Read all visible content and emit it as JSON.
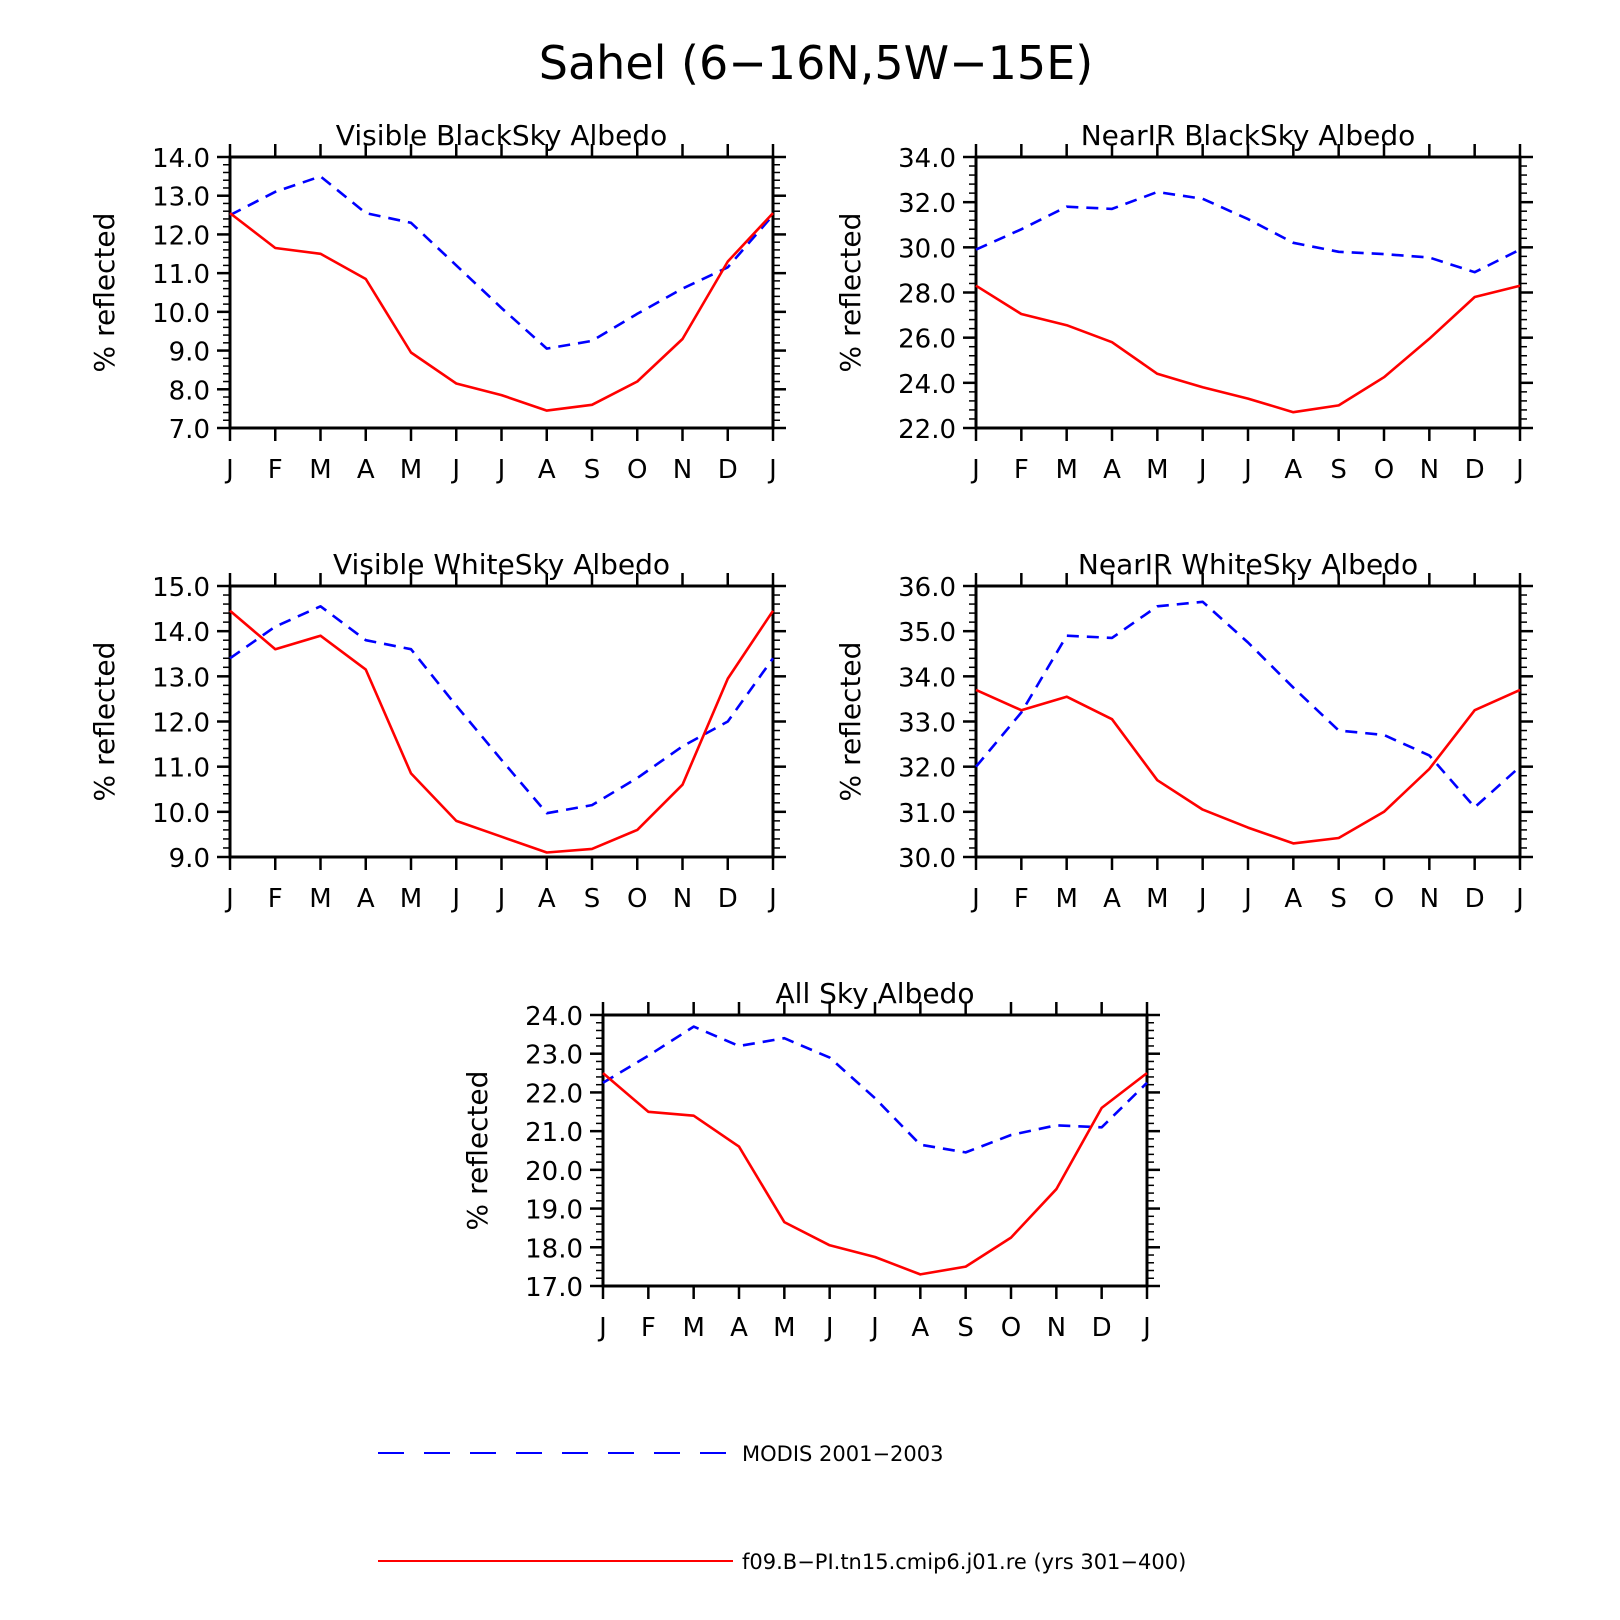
{
  "figure_title": "Sahel (6−16N,5W−15E)",
  "colors": {
    "modis": "#0000ff",
    "model": "#ff0000",
    "axes": "#000000"
  },
  "legend": [
    {
      "label": "MODIS 2001−2003",
      "style": "dashed",
      "color": "#0000ff"
    },
    {
      "label": "f09.B−PI.tn15.cmip6.j01.re (yrs 301−400)",
      "style": "solid",
      "color": "#ff0000"
    }
  ],
  "chart_data": [
    {
      "type": "line",
      "title": "Visible BlackSky Albedo",
      "ylabel": "% reflected",
      "categories": [
        "J",
        "F",
        "M",
        "A",
        "M",
        "J",
        "J",
        "A",
        "S",
        "O",
        "N",
        "D",
        "J"
      ],
      "ylim": [
        7.0,
        14.0
      ],
      "yticks": [
        "7.0",
        "8.0",
        "9.0",
        "10.0",
        "11.0",
        "12.0",
        "13.0",
        "14.0"
      ],
      "series": [
        {
          "name": "MODIS 2001−2003",
          "style": "dashed",
          "values": [
            12.5,
            13.1,
            13.5,
            12.55,
            12.3,
            11.2,
            10.1,
            9.05,
            9.25,
            9.95,
            10.6,
            11.15,
            12.5
          ]
        },
        {
          "name": "f09.B−PI.tn15.cmip6.j01.re (yrs 301−400)",
          "style": "solid",
          "values": [
            12.55,
            11.65,
            11.5,
            10.85,
            8.95,
            8.15,
            7.85,
            7.45,
            7.6,
            8.2,
            9.3,
            11.3,
            12.55
          ]
        }
      ]
    },
    {
      "type": "line",
      "title": "NearIR BlackSky Albedo",
      "ylabel": "% reflected",
      "categories": [
        "J",
        "F",
        "M",
        "A",
        "M",
        "J",
        "J",
        "A",
        "S",
        "O",
        "N",
        "D",
        "J"
      ],
      "ylim": [
        22.0,
        34.0
      ],
      "yticks": [
        "22.0",
        "24.0",
        "26.0",
        "28.0",
        "30.0",
        "32.0",
        "34.0"
      ],
      "series": [
        {
          "name": "MODIS 2001−2003",
          "style": "dashed",
          "values": [
            29.9,
            30.8,
            31.8,
            31.7,
            32.45,
            32.15,
            31.25,
            30.2,
            29.8,
            29.7,
            29.55,
            28.9,
            29.9
          ]
        },
        {
          "name": "f09.B−PI.tn15.cmip6.j01.re (yrs 301−400)",
          "style": "solid",
          "values": [
            28.3,
            27.05,
            26.55,
            25.8,
            24.4,
            23.8,
            23.3,
            22.7,
            23.0,
            24.25,
            25.95,
            27.8,
            28.3
          ]
        }
      ]
    },
    {
      "type": "line",
      "title": "Visible WhiteSky Albedo",
      "ylabel": "% reflected",
      "categories": [
        "J",
        "F",
        "M",
        "A",
        "M",
        "J",
        "J",
        "A",
        "S",
        "O",
        "N",
        "D",
        "J"
      ],
      "ylim": [
        9.0,
        15.0
      ],
      "yticks": [
        "9.0",
        "10.0",
        "11.0",
        "12.0",
        "13.0",
        "14.0",
        "15.0"
      ],
      "series": [
        {
          "name": "MODIS 2001−2003",
          "style": "dashed",
          "values": [
            13.4,
            14.1,
            14.55,
            13.8,
            13.6,
            12.35,
            11.15,
            9.97,
            10.15,
            10.75,
            11.45,
            12.0,
            13.4
          ]
        },
        {
          "name": "f09.B−PI.tn15.cmip6.j01.re (yrs 301−400)",
          "style": "solid",
          "values": [
            14.45,
            13.6,
            13.9,
            13.15,
            10.85,
            9.8,
            9.45,
            9.1,
            9.18,
            9.6,
            10.6,
            12.95,
            14.45
          ]
        }
      ]
    },
    {
      "type": "line",
      "title": "NearIR WhiteSky Albedo",
      "ylabel": "% reflected",
      "categories": [
        "J",
        "F",
        "M",
        "A",
        "M",
        "J",
        "J",
        "A",
        "S",
        "O",
        "N",
        "D",
        "J"
      ],
      "ylim": [
        30.0,
        36.0
      ],
      "yticks": [
        "30.0",
        "31.0",
        "32.0",
        "33.0",
        "34.0",
        "35.0",
        "36.0"
      ],
      "series": [
        {
          "name": "MODIS 2001−2003",
          "style": "dashed",
          "values": [
            32.0,
            33.2,
            34.9,
            34.85,
            35.55,
            35.65,
            34.75,
            33.75,
            32.8,
            32.7,
            32.25,
            31.1,
            32.0
          ]
        },
        {
          "name": "f09.B−PI.tn15.cmip6.j01.re (yrs 301−400)",
          "style": "solid",
          "values": [
            33.7,
            33.25,
            33.55,
            33.05,
            31.7,
            31.05,
            30.65,
            30.3,
            30.42,
            31.0,
            31.95,
            33.25,
            33.7
          ]
        }
      ]
    },
    {
      "type": "line",
      "title": "All Sky Albedo",
      "ylabel": "% reflected",
      "categories": [
        "J",
        "F",
        "M",
        "A",
        "M",
        "J",
        "J",
        "A",
        "S",
        "O",
        "N",
        "D",
        "J"
      ],
      "ylim": [
        17.0,
        24.0
      ],
      "yticks": [
        "17.0",
        "18.0",
        "19.0",
        "20.0",
        "21.0",
        "22.0",
        "23.0",
        "24.0"
      ],
      "series": [
        {
          "name": "MODIS 2001−2003",
          "style": "dashed",
          "values": [
            22.25,
            22.95,
            23.7,
            23.2,
            23.4,
            22.9,
            21.85,
            20.65,
            20.45,
            20.9,
            21.15,
            21.1,
            22.25
          ]
        },
        {
          "name": "f09.B−PI.tn15.cmip6.j01.re (yrs 301−400)",
          "style": "solid",
          "values": [
            22.5,
            21.5,
            21.4,
            20.6,
            18.65,
            18.05,
            17.75,
            17.3,
            17.5,
            18.25,
            19.5,
            21.6,
            22.5
          ]
        }
      ]
    }
  ]
}
